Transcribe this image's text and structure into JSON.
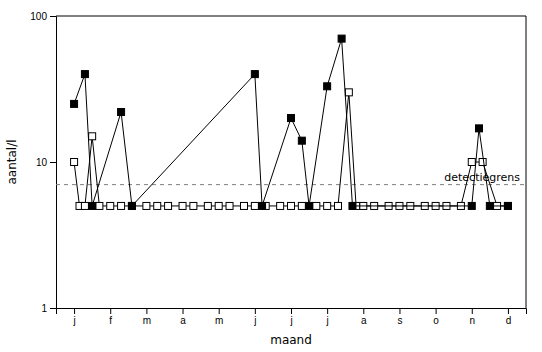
{
  "chart_data": {
    "type": "line",
    "xlabel": "maand",
    "ylabel": "aantal/l",
    "log": "y",
    "xlim": [
      -0.5,
      12.5
    ],
    "xticks": [
      {
        "value": 0,
        "label": "j"
      },
      {
        "value": 1,
        "label": "f"
      },
      {
        "value": 2,
        "label": "m"
      },
      {
        "value": 3,
        "label": "a"
      },
      {
        "value": 4,
        "label": "m"
      },
      {
        "value": 5,
        "label": "j"
      },
      {
        "value": 6,
        "label": "j"
      },
      {
        "value": 7,
        "label": "j"
      },
      {
        "value": 8,
        "label": "a"
      },
      {
        "value": 9,
        "label": "s"
      },
      {
        "value": 10,
        "label": "o"
      },
      {
        "value": 11,
        "label": "n"
      },
      {
        "value": 12,
        "label": "d"
      }
    ],
    "ylim": [
      1,
      100
    ],
    "yticks": [
      1,
      10,
      100
    ],
    "grid": false,
    "series": [
      {
        "color": "#000000",
        "marker": "square-open",
        "x": [
          0.0,
          0.15,
          0.3,
          0.5,
          0.7,
          1.0,
          1.3,
          1.6,
          2.0,
          2.3,
          2.6,
          3.0,
          3.3,
          3.7,
          4.0,
          4.3,
          4.7,
          5.0,
          5.3,
          5.7,
          6.0,
          6.3,
          6.7,
          7.0,
          7.3,
          7.6,
          7.8,
          8.0,
          8.3,
          8.7,
          9.0,
          9.3,
          9.7,
          10.0,
          10.3,
          10.7,
          11.0,
          11.3,
          11.7,
          12.0
        ],
        "values": [
          10,
          5,
          5,
          15,
          5,
          5,
          5,
          5,
          5,
          5,
          5,
          5,
          5,
          5,
          5,
          5,
          5,
          5,
          5,
          5,
          5,
          5,
          5,
          5,
          5,
          30,
          5,
          5,
          5,
          5,
          5,
          5,
          5,
          5,
          5,
          5,
          10,
          10,
          5,
          5
        ]
      },
      {
        "color": "#000000",
        "marker": "square",
        "x": [
          0.0,
          0.3,
          0.5,
          1.3,
          1.6,
          5.0,
          5.2,
          6.0,
          6.3,
          6.5,
          7.0,
          7.4,
          7.7,
          11.0,
          11.2,
          11.5,
          12.0
        ],
        "values": [
          25,
          40,
          5,
          22,
          5,
          40,
          5,
          20,
          14,
          5,
          33,
          70,
          5,
          5,
          17,
          5,
          5
        ]
      }
    ],
    "reference_lines": [
      {
        "y": 7.0,
        "label": "detectiegrens",
        "color": "gray",
        "line_style": "dashed"
      }
    ]
  }
}
